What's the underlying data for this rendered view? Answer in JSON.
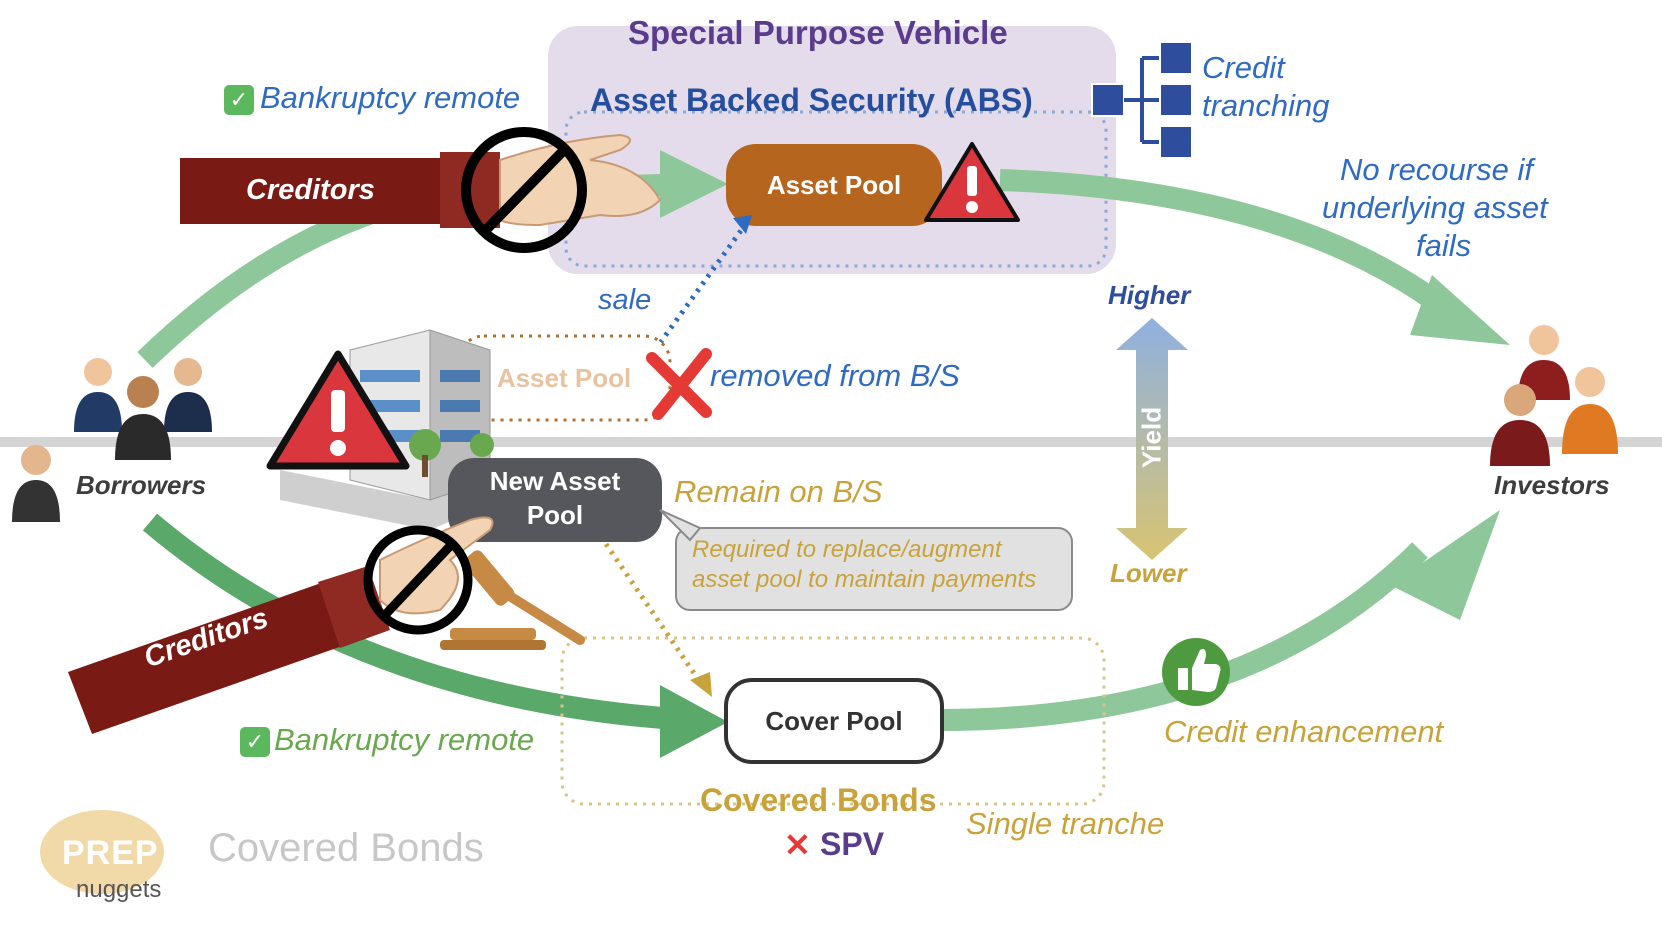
{
  "colors": {
    "green_arrow": "#8dc79a",
    "dark_green_arrow": "#5aa86a",
    "asset_pool_orange": "#b5651d",
    "spv_bg": "#e4dceb",
    "creditors_red": "#7a1a14",
    "warning_red": "#d9363e",
    "blue_text": "#2f6bc0",
    "gold_text": "#c8a23a"
  },
  "spv": {
    "title": "Special Purpose Vehicle",
    "abs_label": "Asset Backed Security (ABS)",
    "asset_pool_label": "Asset Pool",
    "credit_tranching": [
      "Credit",
      "tranching"
    ]
  },
  "abs_side": {
    "bankruptcy_remote": "Bankruptcy remote",
    "creditors_label": "Creditors",
    "no_recourse": [
      "No recourse if",
      "underlying asset",
      "fails"
    ],
    "sale_label": "sale",
    "bs_asset_pool_label": "Asset Pool",
    "removed_label": "removed from B/S"
  },
  "parties": {
    "borrowers": "Borrowers",
    "investors": "Investors"
  },
  "yield_scale": {
    "higher": "Higher",
    "lower": "Lower",
    "axis_label": "Yield"
  },
  "covered_side": {
    "new_asset_pool": [
      "New Asset",
      "Pool"
    ],
    "remain_label": "Remain on B/S",
    "required_note": [
      "Required to replace/augment",
      "asset pool to maintain payments"
    ],
    "creditors_label": "Creditors",
    "bankruptcy_remote": "Bankruptcy remote",
    "cover_pool_label": "Cover Pool",
    "credit_enhancement": "Credit enhancement",
    "covered_bonds_label": "Covered Bonds",
    "single_tranche": "Single tranche",
    "no_spv": "SPV"
  },
  "branding": {
    "logo_main": "PREP",
    "logo_sub": "nuggets",
    "page_title": "Covered Bonds"
  }
}
